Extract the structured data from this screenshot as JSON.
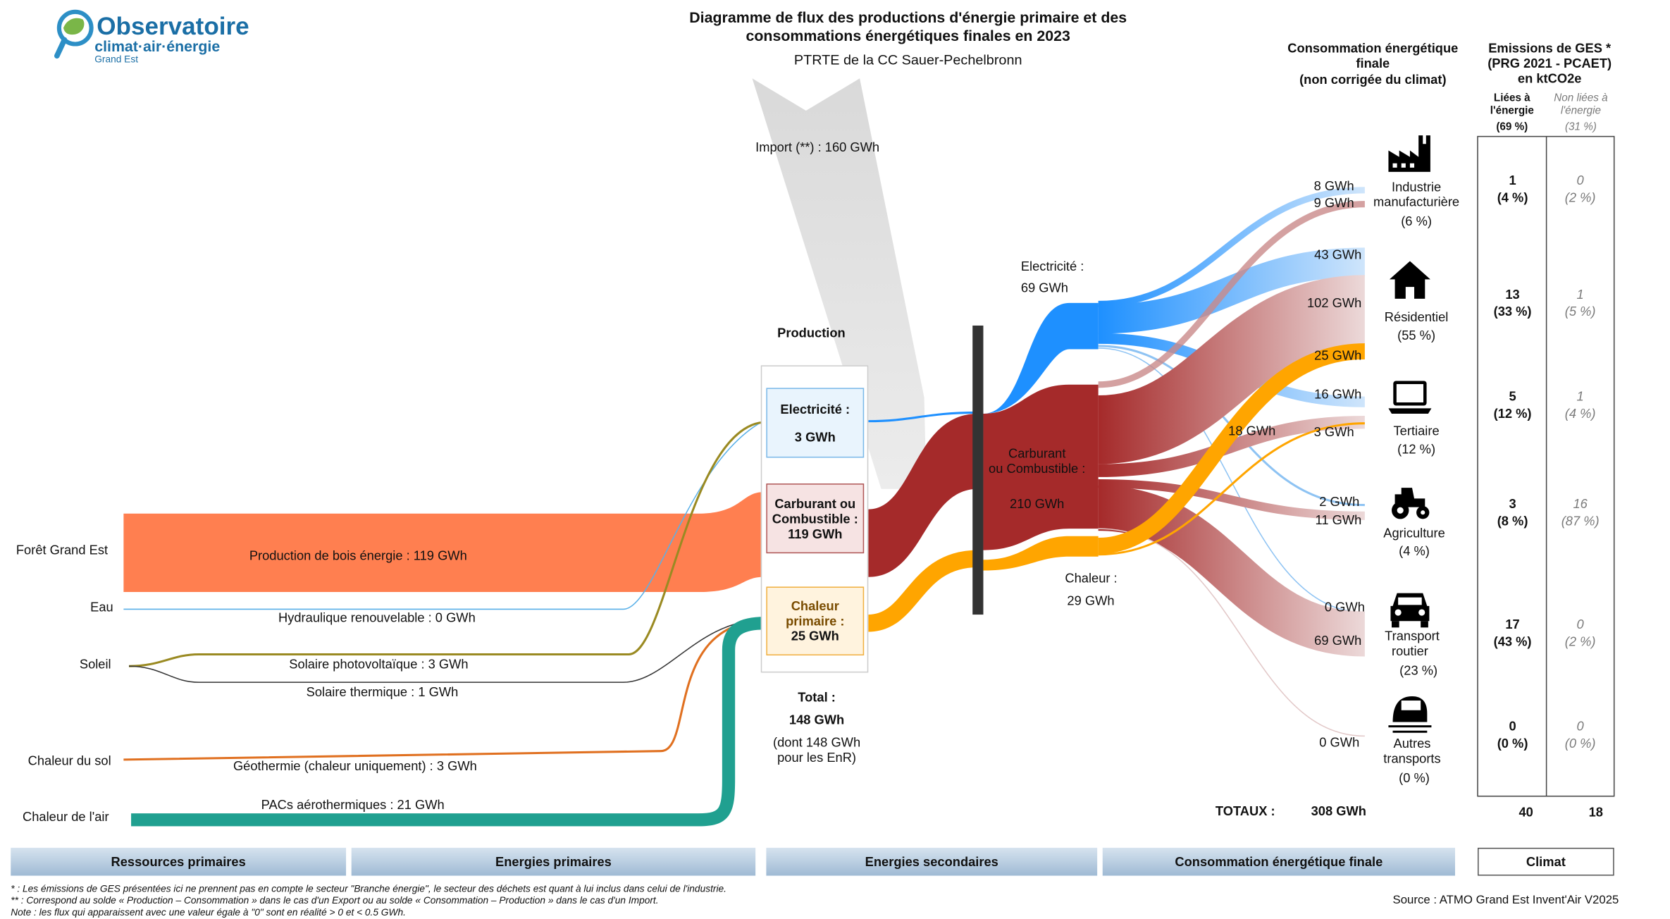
{
  "logo": {
    "line1": "Observatoire",
    "line2": "climat·air·énergie",
    "line3": "Grand Est",
    "accent": "#2d8fc6",
    "green": "#7ab648"
  },
  "header": {
    "title_line1": "Diagramme de flux des productions d'énergie primaire et des",
    "title_line2": "consommations énergétiques finales en 2023",
    "subtitle": "PTRTE de la CC Sauer-Pechelbronn"
  },
  "resources": {
    "foret": "Forêt Grand Est",
    "eau": "Eau",
    "soleil": "Soleil",
    "sol": "Chaleur du sol",
    "air": "Chaleur de l'air"
  },
  "flows": {
    "bois": "Production de bois énergie :  119 GWh",
    "hydro": "Hydraulique renouvelable :  0 GWh",
    "pv": "Solaire photovoltaïque :  3 GWh",
    "thermique": "Solaire thermique :  1 GWh",
    "geo": "Géothermie (chaleur uniquement) :  3 GWh",
    "pac": "PACs aérothermiques :  21 GWh",
    "import": "Import (**) :  160 GWh"
  },
  "production": {
    "heading": "Production",
    "elec_l1": "Electricité :",
    "elec_l2": "3 GWh",
    "carb_l1": "Carburant ou",
    "carb_l2": "Combustible :",
    "carb_l3": "119 GWh",
    "chal_l1": "Chaleur",
    "chal_l2": "primaire :",
    "chal_l3": "25 GWh",
    "total_label": "Total :",
    "total_value": "148 GWh",
    "enr_l1": "(dont  148 GWh",
    "enr_l2": "pour les EnR)"
  },
  "secondary": {
    "elec_label": "Electricité :",
    "elec_value": "69 GWh",
    "carb_l1": "Carburant",
    "carb_l2": "ou Combustible :",
    "carb_value": "210 GWh",
    "chal_label": "Chaleur :",
    "chal_value": "29 GWh"
  },
  "flow_values": {
    "ind_elec": "8 GWh",
    "ind_carb": "9 GWh",
    "res_elec": "43 GWh",
    "res_carb": "102 GWh",
    "res_chal": "25 GWh",
    "ter_elec": "16 GWh",
    "ter_carb": "18 GWh",
    "ter_chal": "3 GWh",
    "agr_elec": "2 GWh",
    "agr_carb": "11 GWh",
    "tra_elec": "0 GWh",
    "tra_carb": "69 GWh",
    "aut": "0 GWh"
  },
  "consumption": {
    "heading_l1": "Consommation énergétique",
    "heading_l2": "finale",
    "heading_l3": "(non corrigée du climat)",
    "sectors": [
      {
        "icon": "factory-icon",
        "l1": "Industrie",
        "l2": "manufacturière",
        "pct": "(6 %)"
      },
      {
        "icon": "house-icon",
        "l1": "Résidentiel",
        "l2": "",
        "pct": "(55 %)"
      },
      {
        "icon": "laptop-icon",
        "l1": "Tertiaire",
        "l2": "",
        "pct": "(12 %)"
      },
      {
        "icon": "tractor-icon",
        "l1": "Agriculture",
        "l2": "",
        "pct": "(4 %)"
      },
      {
        "icon": "car-icon",
        "l1": "Transport",
        "l2": "routier",
        "pct": "(23 %)"
      },
      {
        "icon": "train-icon",
        "l1": "Autres",
        "l2": "transports",
        "pct": "(0 %)"
      }
    ],
    "totals_label": "TOTAUX :",
    "totals_value": "308 GWh"
  },
  "ges": {
    "heading_l1": "Emissions de GES *",
    "heading_l2": "(PRG 2021 - PCAET)",
    "heading_l3": "en ktCO2e",
    "col1_l1": "Liées à",
    "col1_l2": "l'énergie",
    "col1_pct": "(69 %)",
    "col2_l1": "Non liées à",
    "col2_l2": "l'énergie",
    "col2_pct": "(31 %)",
    "rows": [
      {
        "v1": "1",
        "p1": "(4 %)",
        "v2": "0",
        "p2": "(2 %)"
      },
      {
        "v1": "13",
        "p1": "(33 %)",
        "v2": "1",
        "p2": "(5 %)"
      },
      {
        "v1": "5",
        "p1": "(12 %)",
        "v2": "1",
        "p2": "(4 %)"
      },
      {
        "v1": "3",
        "p1": "(8 %)",
        "v2": "16",
        "p2": "(87 %)"
      },
      {
        "v1": "17",
        "p1": "(43 %)",
        "v2": "0",
        "p2": "(2 %)"
      },
      {
        "v1": "0",
        "p1": "(0 %)",
        "v2": "0",
        "p2": "(0 %)"
      }
    ],
    "total1": "40",
    "total2": "18"
  },
  "bottom_bar": {
    "b1": "Ressources primaires",
    "b2": "Energies primaires",
    "b3": "Energies secondaires",
    "b4": "Consommation énergétique finale",
    "b5": "Climat"
  },
  "footnotes": {
    "n1": "* : Les émissions de GES présentées ici ne prennent pas en compte le secteur \"Branche énergie\", le secteur des déchets est quant à lui inclus dans celui de l'industrie.",
    "n2": "** : Correspond au solde « Production – Consommation » dans le cas d'un Export ou au solde « Consommation – Production » dans le cas d'un Import.",
    "n3": "Note : les flux qui apparaissent avec une valeur égale à \"0\" sont en réalité > 0 et < 0.5 GWh.",
    "source": "Source : ATMO Grand Est Invent'Air V2025"
  },
  "colors": {
    "bois": "#ff7f50",
    "elec": "#1e90ff",
    "carb": "#a52a2a",
    "chaleur": "#ffa500",
    "pac": "#20a090",
    "pv": "#9a8a22",
    "import": "#dcdcdc",
    "bar": "#b8cde0"
  }
}
